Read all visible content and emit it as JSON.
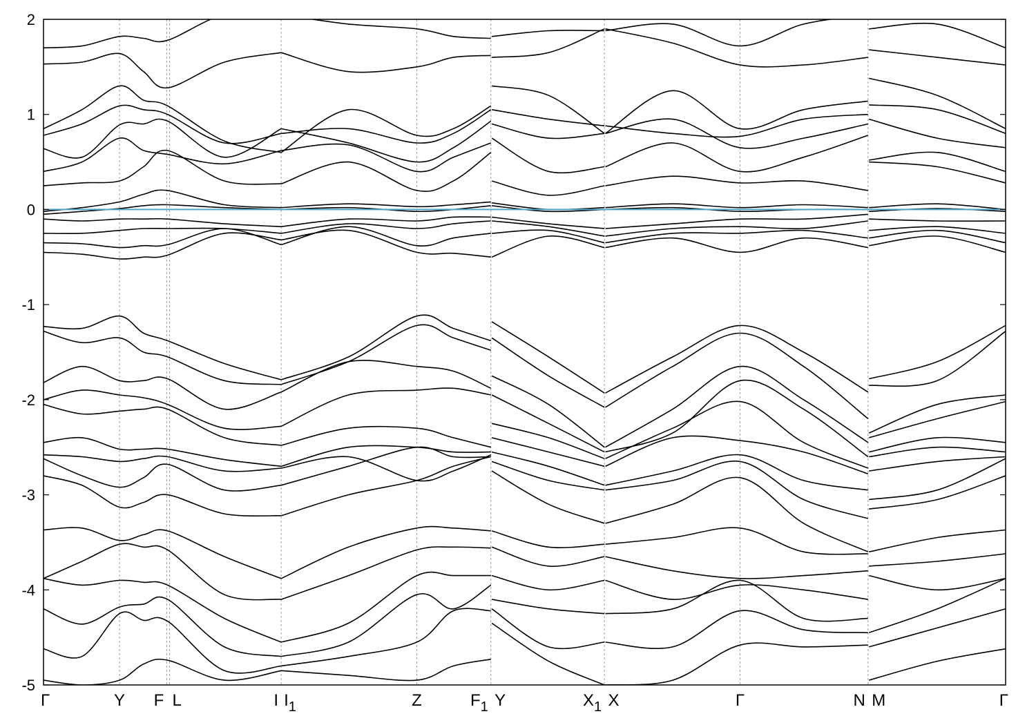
{
  "chart_data": {
    "type": "line",
    "title": "",
    "xlabel": "",
    "ylabel": "",
    "ylim": [
      -5,
      2
    ],
    "yticks": [
      -5,
      -4,
      -3,
      -2,
      -1,
      0,
      1,
      2
    ],
    "ytick_labels": [
      "-5",
      "-4",
      "-3",
      "-2",
      "-1",
      "0",
      "1",
      "2"
    ],
    "xlim": [
      0,
      10.0
    ],
    "fermi_level": 0,
    "fermi_color": "#4fa8c4",
    "kpoints": [
      {
        "label": "Γ",
        "sub": "",
        "x": 0.0,
        "line": false
      },
      {
        "label": "Y",
        "sub": "",
        "x": 0.79,
        "line": true
      },
      {
        "label": "F",
        "sub": "",
        "x": 1.28,
        "line": true
      },
      {
        "label": "L",
        "sub": "",
        "x": 1.31,
        "line": true
      },
      {
        "label": "I",
        "sub": "",
        "x": 2.47,
        "line": true
      },
      {
        "label": "I",
        "sub": "1",
        "x": 2.47,
        "line": false
      },
      {
        "label": "Z",
        "sub": "",
        "x": 3.88,
        "line": true
      },
      {
        "label": "F",
        "sub": "1",
        "x": 4.65,
        "line": true
      },
      {
        "label": "Y",
        "sub": "",
        "x": 4.66,
        "line": false
      },
      {
        "label": "X",
        "sub": "1",
        "x": 5.83,
        "line": true
      },
      {
        "label": "X",
        "sub": "",
        "x": 5.84,
        "line": false
      },
      {
        "label": "Γ",
        "sub": "",
        "x": 7.24,
        "line": true
      },
      {
        "label": "N",
        "sub": "",
        "x": 8.57,
        "line": true
      },
      {
        "label": "M",
        "sub": "",
        "x": 8.58,
        "line": false
      },
      {
        "label": "Γ",
        "sub": "",
        "x": 10.0,
        "line": false
      }
    ],
    "segments": [
      {
        "name": "Γ–Y–F|L–I",
        "x": [
          0.0,
          0.4,
          0.79,
          1.04,
          1.29,
          1.88,
          2.47
        ],
        "bands": [
          [
            1.7,
            1.72,
            1.82,
            1.8,
            1.78,
            2.05,
            2.05
          ],
          [
            1.53,
            1.55,
            1.64,
            1.45,
            1.28,
            1.55,
            1.65
          ],
          [
            0.85,
            1.05,
            1.3,
            1.15,
            1.09,
            0.72,
            0.6
          ],
          [
            0.78,
            0.9,
            1.09,
            1.05,
            1.0,
            0.7,
            0.8
          ],
          [
            0.64,
            0.55,
            0.89,
            0.9,
            0.93,
            0.55,
            0.85
          ],
          [
            0.4,
            0.5,
            0.75,
            0.62,
            0.58,
            0.48,
            0.62
          ],
          [
            0.25,
            0.28,
            0.3,
            0.45,
            0.62,
            0.3,
            0.27
          ],
          [
            -0.02,
            0.02,
            0.08,
            0.16,
            0.2,
            0.05,
            0.02
          ],
          [
            -0.05,
            -0.02,
            0.01,
            0.04,
            0.05,
            0.02,
            0.0
          ],
          [
            -0.1,
            -0.12,
            -0.1,
            -0.1,
            -0.1,
            -0.15,
            -0.18
          ],
          [
            -0.25,
            -0.25,
            -0.22,
            -0.2,
            -0.2,
            -0.2,
            -0.25
          ],
          [
            -0.35,
            -0.36,
            -0.4,
            -0.38,
            -0.37,
            -0.2,
            -0.37
          ],
          [
            -0.45,
            -0.47,
            -0.52,
            -0.5,
            -0.48,
            -0.25,
            -0.32
          ],
          [
            -1.23,
            -1.25,
            -1.12,
            -1.3,
            -1.38,
            -1.62,
            -1.79
          ],
          [
            -1.28,
            -1.4,
            -1.35,
            -1.5,
            -1.55,
            -1.8,
            -1.84
          ],
          [
            -1.82,
            -1.65,
            -1.8,
            -1.8,
            -1.78,
            -2.1,
            -1.92
          ],
          [
            -2.0,
            -1.9,
            -1.95,
            -1.98,
            -2.05,
            -2.3,
            -2.28
          ],
          [
            -2.05,
            -2.15,
            -2.12,
            -2.1,
            -2.1,
            -2.4,
            -2.48
          ],
          [
            -2.45,
            -2.4,
            -2.52,
            -2.52,
            -2.52,
            -2.63,
            -2.7
          ],
          [
            -2.58,
            -2.6,
            -2.65,
            -2.62,
            -2.6,
            -2.75,
            -2.72
          ],
          [
            -2.62,
            -2.8,
            -2.92,
            -2.82,
            -2.68,
            -2.95,
            -2.9
          ],
          [
            -2.8,
            -2.9,
            -3.13,
            -3.08,
            -3.0,
            -3.2,
            -3.22
          ],
          [
            -3.37,
            -3.35,
            -3.48,
            -3.42,
            -3.38,
            -3.65,
            -3.88
          ],
          [
            -3.88,
            -3.7,
            -3.52,
            -3.55,
            -3.58,
            -4.05,
            -4.1
          ],
          [
            -3.88,
            -3.95,
            -3.9,
            -3.92,
            -3.95,
            -4.3,
            -4.55
          ],
          [
            -4.2,
            -4.36,
            -4.18,
            -4.15,
            -4.1,
            -4.6,
            -4.7
          ],
          [
            -4.62,
            -4.7,
            -4.25,
            -4.32,
            -4.33,
            -4.85,
            -4.8
          ],
          [
            -4.95,
            -5.0,
            -4.95,
            -4.78,
            -4.74,
            -4.95,
            -4.85
          ]
        ]
      },
      {
        "name": "I1–Z–F1",
        "x": [
          2.47,
          3.17,
          3.88,
          4.26,
          4.65
        ],
        "bands": [
          [
            2.05,
            1.95,
            1.9,
            1.82,
            1.8
          ],
          [
            1.65,
            1.45,
            1.5,
            1.6,
            1.62
          ],
          [
            0.6,
            1.05,
            0.78,
            0.85,
            1.09
          ],
          [
            0.8,
            0.85,
            0.7,
            0.8,
            1.05
          ],
          [
            0.85,
            0.7,
            0.5,
            0.65,
            0.93
          ],
          [
            0.62,
            0.68,
            0.4,
            0.55,
            0.7
          ],
          [
            0.27,
            0.5,
            0.2,
            0.3,
            0.6
          ],
          [
            0.02,
            0.06,
            0.03,
            0.05,
            0.08
          ],
          [
            0.0,
            0.02,
            -0.02,
            0.0,
            0.04
          ],
          [
            -0.18,
            -0.1,
            -0.12,
            -0.08,
            -0.08
          ],
          [
            -0.25,
            -0.15,
            -0.2,
            -0.15,
            -0.12
          ],
          [
            -0.37,
            -0.18,
            -0.38,
            -0.3,
            -0.25
          ],
          [
            -0.32,
            -0.22,
            -0.45,
            -0.46,
            -0.5
          ],
          [
            -1.79,
            -1.55,
            -1.12,
            -1.25,
            -1.38
          ],
          [
            -1.84,
            -1.6,
            -1.22,
            -1.35,
            -1.48
          ],
          [
            -1.92,
            -1.6,
            -1.65,
            -1.7,
            -1.88
          ],
          [
            -2.28,
            -1.95,
            -1.9,
            -1.88,
            -1.95
          ],
          [
            -2.48,
            -2.3,
            -2.3,
            -2.4,
            -2.5
          ],
          [
            -2.7,
            -2.5,
            -2.5,
            -2.55,
            -2.55
          ],
          [
            -2.72,
            -2.6,
            -2.85,
            -2.75,
            -2.58
          ],
          [
            -2.9,
            -2.7,
            -2.5,
            -2.6,
            -2.6
          ],
          [
            -3.22,
            -3.0,
            -2.85,
            -2.7,
            -2.6
          ],
          [
            -3.88,
            -3.55,
            -3.35,
            -3.35,
            -3.38
          ],
          [
            -4.1,
            -3.85,
            -3.58,
            -3.55,
            -3.56
          ],
          [
            -4.55,
            -4.35,
            -3.85,
            -3.85,
            -3.85
          ],
          [
            -4.7,
            -4.55,
            -4.05,
            -4.2,
            -3.95
          ],
          [
            -4.8,
            -4.7,
            -4.55,
            -4.22,
            -4.22
          ],
          [
            -4.85,
            -4.9,
            -4.95,
            -4.8,
            -4.73
          ]
        ]
      },
      {
        "name": "Y–X1",
        "x": [
          4.66,
          5.25,
          5.83
        ],
        "bands": [
          [
            1.82,
            1.88,
            1.88
          ],
          [
            1.6,
            1.65,
            1.9
          ],
          [
            1.3,
            1.2,
            0.8
          ],
          [
            1.05,
            0.95,
            0.88
          ],
          [
            0.9,
            0.75,
            0.8
          ],
          [
            0.75,
            0.4,
            0.45
          ],
          [
            0.3,
            0.15,
            0.25
          ],
          [
            0.07,
            0.0,
            0.02
          ],
          [
            0.04,
            -0.02,
            0.0
          ],
          [
            -0.08,
            -0.15,
            -0.2
          ],
          [
            -0.12,
            -0.18,
            -0.28
          ],
          [
            -0.25,
            -0.22,
            -0.35
          ],
          [
            -0.5,
            -0.28,
            -0.4
          ],
          [
            -1.18,
            -1.55,
            -1.93
          ],
          [
            -1.35,
            -1.75,
            -2.08
          ],
          [
            -1.75,
            -2.05,
            -2.5
          ],
          [
            -1.95,
            -2.25,
            -2.55
          ],
          [
            -2.25,
            -2.4,
            -2.62
          ],
          [
            -2.4,
            -2.55,
            -2.7
          ],
          [
            -2.55,
            -2.7,
            -2.9
          ],
          [
            -2.65,
            -2.85,
            -2.95
          ],
          [
            -2.75,
            -3.1,
            -3.3
          ],
          [
            -3.38,
            -3.55,
            -3.52
          ],
          [
            -3.55,
            -3.75,
            -3.65
          ],
          [
            -3.85,
            -4.0,
            -3.9
          ],
          [
            -4.1,
            -4.2,
            -4.25
          ],
          [
            -4.2,
            -4.6,
            -4.55
          ],
          [
            -4.35,
            -4.75,
            -5.0
          ]
        ]
      },
      {
        "name": "X–Γ–N",
        "x": [
          5.84,
          6.54,
          7.24,
          7.9,
          8.57
        ],
        "bands": [
          [
            1.88,
            1.95,
            1.72,
            1.95,
            2.05
          ],
          [
            1.9,
            1.75,
            1.52,
            1.52,
            1.6
          ],
          [
            0.8,
            1.25,
            0.85,
            1.05,
            1.14
          ],
          [
            0.88,
            0.8,
            0.77,
            0.95,
            1.0
          ],
          [
            0.8,
            0.95,
            0.65,
            0.75,
            0.9
          ],
          [
            0.45,
            0.7,
            0.4,
            0.55,
            0.78
          ],
          [
            0.25,
            0.35,
            0.28,
            0.3,
            0.2
          ],
          [
            0.02,
            0.06,
            0.02,
            0.05,
            0.02
          ],
          [
            0.0,
            0.02,
            -0.02,
            0.0,
            0.0
          ],
          [
            -0.2,
            -0.15,
            -0.1,
            -0.1,
            -0.05
          ],
          [
            -0.28,
            -0.2,
            -0.18,
            -0.2,
            -0.12
          ],
          [
            -0.35,
            -0.25,
            -0.25,
            -0.22,
            -0.3
          ],
          [
            -0.4,
            -0.3,
            -0.45,
            -0.3,
            -0.4
          ],
          [
            -1.93,
            -1.55,
            -1.22,
            -1.5,
            -1.92
          ],
          [
            -2.08,
            -1.65,
            -1.3,
            -1.65,
            -2.2
          ],
          [
            -2.5,
            -2.1,
            -1.65,
            -2.0,
            -2.45
          ],
          [
            -2.55,
            -2.35,
            -1.8,
            -2.1,
            -2.6
          ],
          [
            -2.62,
            -2.3,
            -2.02,
            -2.45,
            -2.72
          ],
          [
            -2.7,
            -2.4,
            -2.43,
            -2.55,
            -2.78
          ],
          [
            -2.9,
            -2.75,
            -2.58,
            -2.85,
            -2.95
          ],
          [
            -2.95,
            -2.85,
            -2.65,
            -3.05,
            -3.25
          ],
          [
            -3.3,
            -3.1,
            -2.82,
            -3.3,
            -3.6
          ],
          [
            -3.52,
            -3.45,
            -3.35,
            -3.6,
            -3.62
          ],
          [
            -3.65,
            -3.8,
            -3.88,
            -3.85,
            -3.8
          ],
          [
            -3.9,
            -4.1,
            -3.95,
            -4.0,
            -4.1
          ],
          [
            -4.25,
            -4.2,
            -3.9,
            -4.3,
            -4.3
          ],
          [
            -4.55,
            -4.6,
            -4.22,
            -4.42,
            -4.45
          ],
          [
            -5.0,
            -4.95,
            -4.58,
            -4.6,
            -4.58
          ]
        ]
      },
      {
        "name": "M–Γ",
        "x": [
          8.58,
          9.29,
          10.0
        ],
        "bands": [
          [
            1.9,
            1.95,
            1.7
          ],
          [
            1.68,
            1.6,
            1.52
          ],
          [
            1.38,
            1.2,
            0.85
          ],
          [
            1.1,
            1.05,
            0.8
          ],
          [
            0.95,
            0.75,
            0.65
          ],
          [
            0.52,
            0.6,
            0.4
          ],
          [
            0.5,
            0.45,
            0.28
          ],
          [
            0.02,
            0.06,
            0.0
          ],
          [
            -0.02,
            0.01,
            -0.02
          ],
          [
            -0.1,
            -0.12,
            -0.12
          ],
          [
            -0.22,
            -0.18,
            -0.25
          ],
          [
            -0.3,
            -0.22,
            -0.35
          ],
          [
            -0.38,
            -0.28,
            -0.45
          ],
          [
            -1.78,
            -1.6,
            -1.22
          ],
          [
            -1.85,
            -1.8,
            -1.28
          ],
          [
            -2.35,
            -2.05,
            -1.95
          ],
          [
            -2.4,
            -2.2,
            -2.02
          ],
          [
            -2.55,
            -2.4,
            -2.45
          ],
          [
            -2.6,
            -2.5,
            -2.55
          ],
          [
            -2.75,
            -2.65,
            -2.6
          ],
          [
            -3.05,
            -2.95,
            -2.62
          ],
          [
            -3.15,
            -3.05,
            -2.8
          ],
          [
            -3.6,
            -3.45,
            -3.37
          ],
          [
            -3.75,
            -3.7,
            -3.62
          ],
          [
            -3.85,
            -4.0,
            -3.88
          ],
          [
            -4.45,
            -4.2,
            -3.88
          ],
          [
            -4.6,
            -4.4,
            -4.2
          ],
          [
            -4.95,
            -4.75,
            -4.62
          ]
        ]
      }
    ]
  }
}
